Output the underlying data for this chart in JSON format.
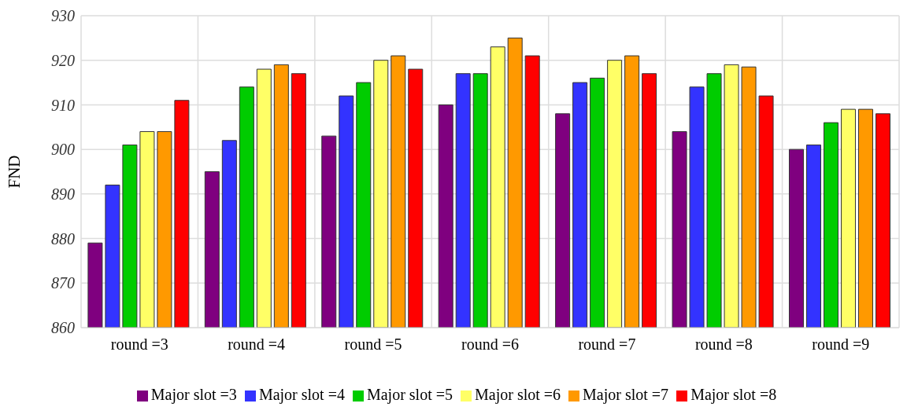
{
  "chart_data": {
    "type": "bar",
    "ylabel": "FND",
    "categories": [
      "round =3",
      "round =4",
      "round =5",
      "round =6",
      "round =7",
      "round =8",
      "round =9"
    ],
    "series": [
      {
        "name": "Major slot =3",
        "color": "#7f007f",
        "values": [
          879,
          895,
          903,
          910,
          908,
          904,
          900
        ]
      },
      {
        "name": "Major slot =4",
        "color": "#3333ff",
        "values": [
          892,
          902,
          912,
          917,
          915,
          914,
          901
        ]
      },
      {
        "name": "Major slot =5",
        "color": "#00cc00",
        "values": [
          901,
          914,
          915,
          917,
          916,
          917,
          906
        ]
      },
      {
        "name": "Major slot =6",
        "color": "#ffff66",
        "values": [
          904,
          918,
          920,
          923,
          920,
          919,
          909
        ]
      },
      {
        "name": "Major slot =7",
        "color": "#ff9900",
        "values": [
          904,
          919,
          921,
          925,
          921,
          918.5,
          909
        ]
      },
      {
        "name": "Major slot =8",
        "color": "#ff0000",
        "values": [
          911,
          917,
          918,
          921,
          917,
          912,
          908
        ]
      }
    ],
    "ylim": [
      860,
      930
    ],
    "yticks": [
      860,
      870,
      880,
      890,
      900,
      910,
      920,
      930
    ],
    "grid": true,
    "legend": "bottom"
  }
}
